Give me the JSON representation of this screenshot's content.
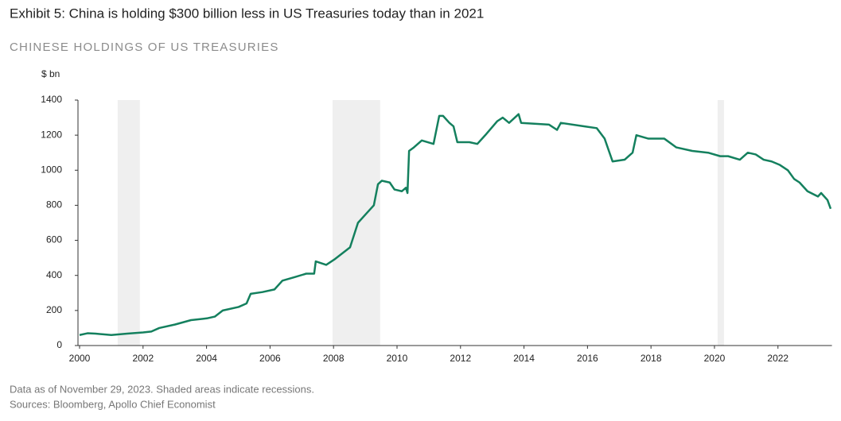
{
  "chart_data": {
    "type": "line",
    "title": "Exhibit 5: China is holding $300 billion less in US Treasuries today than in 2021",
    "subtitle": "CHINESE HOLDINGS OF US TREASURIES",
    "y_axis_label": "$ bn",
    "footnotes": [
      "Data as of November 29, 2023. Shaded areas indicate recessions.",
      "Sources: Bloomberg, Apollo Chief Economist"
    ],
    "x": [
      2000.0,
      2000.25,
      2000.5,
      2001.0,
      2001.5,
      2002.0,
      2002.26,
      2002.51,
      2003.01,
      2003.51,
      2004.01,
      2004.26,
      2004.51,
      2005.01,
      2005.26,
      2005.39,
      2005.76,
      2006.14,
      2006.39,
      2006.77,
      2007.14,
      2007.39,
      2007.44,
      2007.77,
      2008.02,
      2008.52,
      2008.77,
      2009.02,
      2009.27,
      2009.4,
      2009.52,
      2009.77,
      2009.92,
      2010.15,
      2010.28,
      2010.33,
      2010.38,
      2010.53,
      2010.78,
      2011.15,
      2011.33,
      2011.45,
      2011.65,
      2011.78,
      2011.9,
      2012.28,
      2012.53,
      2012.78,
      2013.16,
      2013.33,
      2013.53,
      2013.83,
      2013.91,
      2014.79,
      2015.04,
      2015.16,
      2015.91,
      2016.29,
      2016.54,
      2016.79,
      2017.17,
      2017.42,
      2017.54,
      2017.92,
      2018.42,
      2018.8,
      2019.3,
      2019.8,
      2020.18,
      2020.43,
      2020.8,
      2021.05,
      2021.3,
      2021.55,
      2021.8,
      2022.06,
      2022.31,
      2022.51,
      2022.68,
      2022.93,
      2023.26,
      2023.36,
      2023.56,
      2023.66
    ],
    "series": [
      {
        "name": "Chinese holdings of US Treasuries",
        "color": "#14805e",
        "values": [
          60,
          70,
          68,
          60,
          68,
          75,
          80,
          100,
          120,
          145,
          155,
          165,
          200,
          220,
          240,
          295,
          305,
          320,
          370,
          390,
          410,
          410,
          480,
          460,
          490,
          560,
          700,
          750,
          800,
          920,
          940,
          930,
          890,
          880,
          900,
          870,
          1110,
          1130,
          1170,
          1150,
          1310,
          1310,
          1270,
          1250,
          1160,
          1160,
          1150,
          1200,
          1280,
          1300,
          1270,
          1320,
          1270,
          1260,
          1230,
          1270,
          1250,
          1240,
          1180,
          1050,
          1060,
          1100,
          1200,
          1180,
          1180,
          1130,
          1110,
          1100,
          1080,
          1080,
          1060,
          1100,
          1090,
          1060,
          1050,
          1030,
          1000,
          950,
          930,
          880,
          850,
          870,
          830,
          780
        ]
      }
    ],
    "recessions": [
      [
        2001.2,
        2001.9
      ],
      [
        2007.97,
        2009.47
      ],
      [
        2020.1,
        2020.3
      ]
    ],
    "recession_color": "#efefef",
    "xlim": [
      2000,
      2023.7
    ],
    "xticks": [
      2000,
      2002,
      2004,
      2006,
      2008,
      2010,
      2012,
      2014,
      2016,
      2018,
      2020,
      2022
    ],
    "ylim": [
      0,
      1400
    ],
    "yticks": [
      0,
      200,
      400,
      600,
      800,
      1000,
      1200,
      1400
    ],
    "grid": false
  }
}
